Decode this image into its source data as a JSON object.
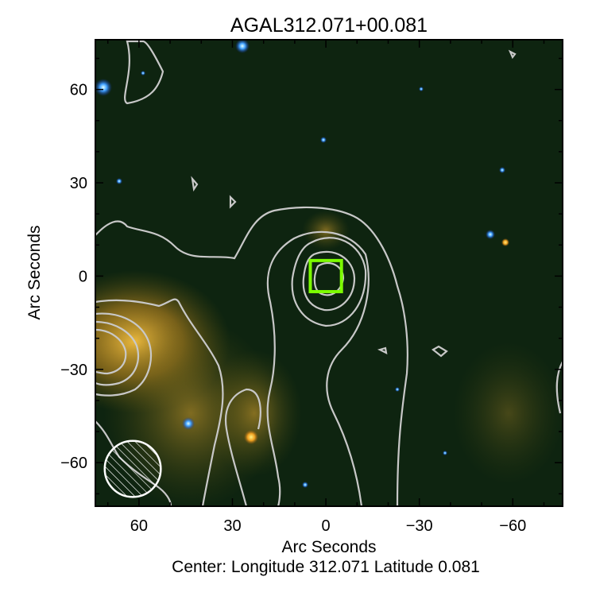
{
  "chart_data": {
    "type": "heatmap",
    "title": "AGAL312.071+00.081",
    "xlabel": "Arc Seconds",
    "ylabel": "Arc Seconds",
    "caption": "Center:  Longitude 312.071 Latitude 0.081",
    "xlim": [
      74,
      -76
    ],
    "ylim": [
      -74,
      76
    ],
    "x_ticks": [
      60,
      30,
      0,
      -30,
      -60
    ],
    "y_ticks": [
      60,
      30,
      0,
      -30,
      -60
    ],
    "x_tick_labels": [
      "60",
      "30",
      "0",
      "−30",
      "−60"
    ],
    "y_tick_labels": [
      "60",
      "30",
      "0",
      "−30",
      "−60"
    ],
    "minor_tick_step": 10,
    "grid": false,
    "marker": {
      "shape": "square",
      "center": [
        0,
        0
      ],
      "half_size": 5,
      "color": "#7cfc00"
    },
    "beam": {
      "shape": "hatched-circle",
      "center": [
        62,
        -62
      ],
      "radius": 9,
      "color": "#ffffff"
    },
    "contour_color": "#c8c8c8",
    "background_color": "#0e2410",
    "emission_color": "#e8a820"
  }
}
